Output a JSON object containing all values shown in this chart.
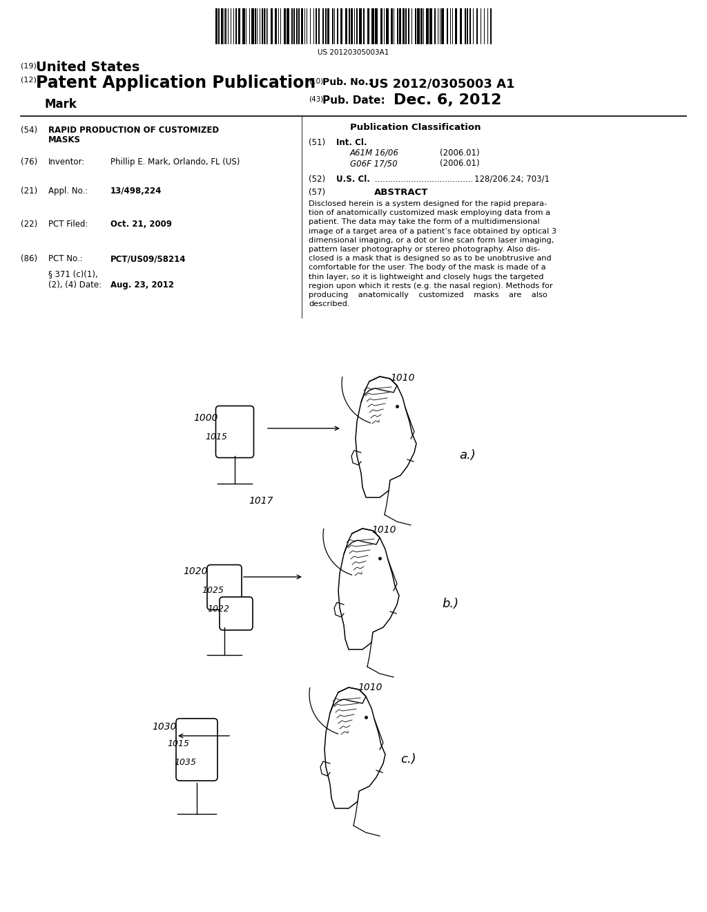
{
  "background_color": "#ffffff",
  "barcode_text": "US 20120305003A1",
  "header_19": "(19)",
  "header_19_text": "United States",
  "header_12": "(12)",
  "header_12_text": "Patent Application Publication",
  "header_mark": "    Mark",
  "header_10_label": "(10)",
  "header_10_text": "Pub. No.:",
  "header_10_value": "US 2012/0305003 A1",
  "header_43_label": "(43)",
  "header_43_text": "Pub. Date:",
  "header_43_value": "Dec. 6, 2012",
  "field_54_label": "(54)",
  "field_76_label": "(76)",
  "field_76_key": "Inventor:",
  "field_76_value": "Phillip E. Mark, Orlando, FL (US)",
  "field_21_label": "(21)",
  "field_21_key": "Appl. No.:",
  "field_21_value": "13/498,224",
  "field_22_label": "(22)",
  "field_22_key": "PCT Filed:",
  "field_22_value": "Oct. 21, 2009",
  "field_86_label": "(86)",
  "field_86_key": "PCT No.:",
  "field_86_value": "PCT/US09/58214",
  "field_86b_key": "§ 371 (c)(1),",
  "field_86c_key": "(2), (4) Date:",
  "field_86c_value": "Aug. 23, 2012",
  "pub_class_title": "Publication Classification",
  "field_51_label": "(51)",
  "field_51_key": "Int. Cl.",
  "field_51_a1": "A61M 16/06",
  "field_51_a1v": "(2006.01)",
  "field_51_a2": "G06F 17/50",
  "field_51_a2v": "(2006.01)",
  "field_52_label": "(52)",
  "field_52_key": "U.S. Cl.",
  "field_52_dots": " ......................................",
  "field_52_value": "128/206.24; 703/1",
  "field_57_label": "(57)",
  "field_57_key": "ABSTRACT",
  "abstract_lines": [
    "Disclosed herein is a system designed for the rapid prepara-",
    "tion of anatomically customized mask employing data from a",
    "patient. The data may take the form of a multidimensional",
    "image of a target area of a patient’s face obtained by optical 3",
    "dimensional imaging, or a dot or line scan form laser imaging,",
    "pattern laser photography or stereo photography. Also dis-",
    "closed is a mask that is designed so as to be unobtrusive and",
    "comfortable for the user. The body of the mask is made of a",
    "thin layer, so it is lightweight and closely hugs the targeted",
    "region upon which it rests (e.g. the nasal region). Methods for",
    "producing    anatomically    customized    masks    are    also",
    "described."
  ]
}
